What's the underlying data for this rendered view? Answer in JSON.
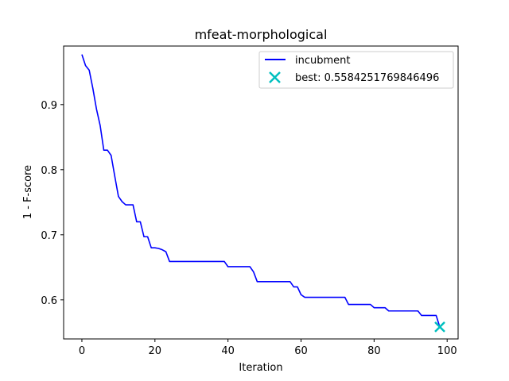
{
  "chart_data": {
    "type": "line",
    "title": "mfeat-morphological",
    "xlabel": "Iteration",
    "ylabel": "1 - F-score",
    "xlim": [
      -5,
      103
    ],
    "ylim": [
      0.54,
      0.99
    ],
    "xticks": [
      0,
      20,
      40,
      60,
      80,
      100
    ],
    "yticks": [
      0.6,
      0.7,
      0.8,
      0.9
    ],
    "grid": false,
    "legend_position": "top-right",
    "series": [
      {
        "name": "incubment",
        "color": "#0000ff",
        "x": [
          0,
          1,
          2,
          3,
          4,
          5,
          6,
          7,
          8,
          9,
          10,
          11,
          12,
          13,
          14,
          15,
          16,
          17,
          18,
          19,
          20,
          21,
          22,
          23,
          24,
          25,
          30,
          35,
          38,
          39,
          40,
          42,
          44,
          46,
          47,
          48,
          50,
          52,
          54,
          56,
          57,
          58,
          59,
          60,
          61,
          62,
          65,
          70,
          72,
          73,
          75,
          78,
          79,
          80,
          82,
          83,
          84,
          86,
          88,
          90,
          92,
          93,
          95,
          97,
          98
        ],
        "y": [
          0.977,
          0.96,
          0.953,
          0.925,
          0.893,
          0.868,
          0.83,
          0.83,
          0.822,
          0.79,
          0.759,
          0.751,
          0.746,
          0.746,
          0.746,
          0.72,
          0.72,
          0.697,
          0.697,
          0.68,
          0.68,
          0.679,
          0.677,
          0.674,
          0.659,
          0.659,
          0.659,
          0.659,
          0.659,
          0.659,
          0.651,
          0.651,
          0.651,
          0.651,
          0.643,
          0.628,
          0.628,
          0.628,
          0.628,
          0.628,
          0.628,
          0.62,
          0.62,
          0.608,
          0.604,
          0.604,
          0.604,
          0.604,
          0.604,
          0.593,
          0.593,
          0.593,
          0.593,
          0.588,
          0.588,
          0.588,
          0.583,
          0.583,
          0.583,
          0.583,
          0.583,
          0.576,
          0.576,
          0.576,
          0.558
        ]
      },
      {
        "name": "best: 0.5584251769846496",
        "type": "scatter",
        "marker": "x",
        "color": "#00bfbf",
        "x": [
          98
        ],
        "y": [
          0.5584251769846496
        ]
      }
    ]
  }
}
